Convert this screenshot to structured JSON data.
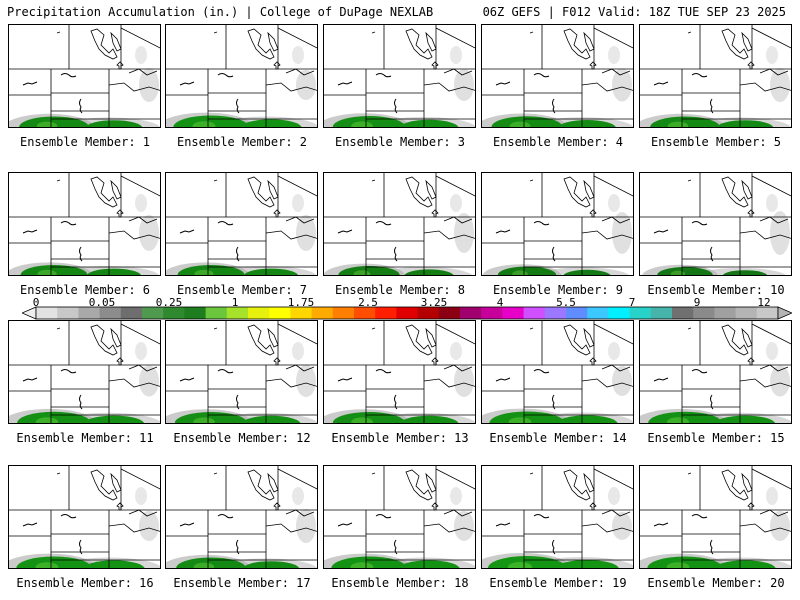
{
  "header": {
    "left": "Precipitation Accumulation (in.) | College of DuPage NEXLAB",
    "right": "06Z GEFS | F012 Valid: 18Z TUE SEP 23 2025"
  },
  "colorbar": {
    "labels": [
      "0",
      "0.05",
      "0.25",
      "1",
      "1.75",
      "2.5",
      "3.25",
      "4",
      "5.5",
      "7",
      "9",
      "12"
    ],
    "colors": [
      "#e2e2e2",
      "#c8c8c8",
      "#a9a9a9",
      "#8c8c8c",
      "#6e6e6e",
      "#4f9a4f",
      "#2f8a2f",
      "#1e7d1e",
      "#6cc63c",
      "#a6e22a",
      "#e6f20e",
      "#ffff00",
      "#ffd600",
      "#ffaa00",
      "#ff7f00",
      "#ff4e00",
      "#ff1e00",
      "#e00000",
      "#b40000",
      "#8c0014",
      "#a0006e",
      "#c8009b",
      "#e600c8",
      "#d050ff",
      "#9b78ff",
      "#5f8cff",
      "#3cc8ff",
      "#00f0ff",
      "#28d2c8",
      "#46b4aa",
      "#707070",
      "#8a8a8a",
      "#a0a0a0",
      "#b4b4b4",
      "#c8c8c8"
    ]
  },
  "panels": [
    {
      "label": "Ensemble Member: 1",
      "intensity": 0.7
    },
    {
      "label": "Ensemble Member: 2",
      "intensity": 0.9
    },
    {
      "label": "Ensemble Member: 3",
      "intensity": 0.8
    },
    {
      "label": "Ensemble Member: 4",
      "intensity": 0.75
    },
    {
      "label": "Ensemble Member: 5",
      "intensity": 0.7
    },
    {
      "label": "Ensemble Member: 6",
      "intensity": 0.6
    },
    {
      "label": "Ensemble Member: 7",
      "intensity": 0.6
    },
    {
      "label": "Ensemble Member: 8",
      "intensity": 0.4
    },
    {
      "label": "Ensemble Member: 9",
      "intensity": 0.3
    },
    {
      "label": "Ensemble Member: 10",
      "intensity": 0.2
    },
    {
      "label": "Ensemble Member: 11",
      "intensity": 0.85
    },
    {
      "label": "Ensemble Member: 12",
      "intensity": 0.8
    },
    {
      "label": "Ensemble Member: 13",
      "intensity": 0.8
    },
    {
      "label": "Ensemble Member: 14",
      "intensity": 0.9
    },
    {
      "label": "Ensemble Member: 15",
      "intensity": 0.85
    },
    {
      "label": "Ensemble Member: 16",
      "intensity": 0.9
    },
    {
      "label": "Ensemble Member: 17",
      "intensity": 0.7
    },
    {
      "label": "Ensemble Member: 18",
      "intensity": 0.9
    },
    {
      "label": "Ensemble Member: 19",
      "intensity": 1.0
    },
    {
      "label": "Ensemble Member: 20",
      "intensity": 0.9
    }
  ]
}
